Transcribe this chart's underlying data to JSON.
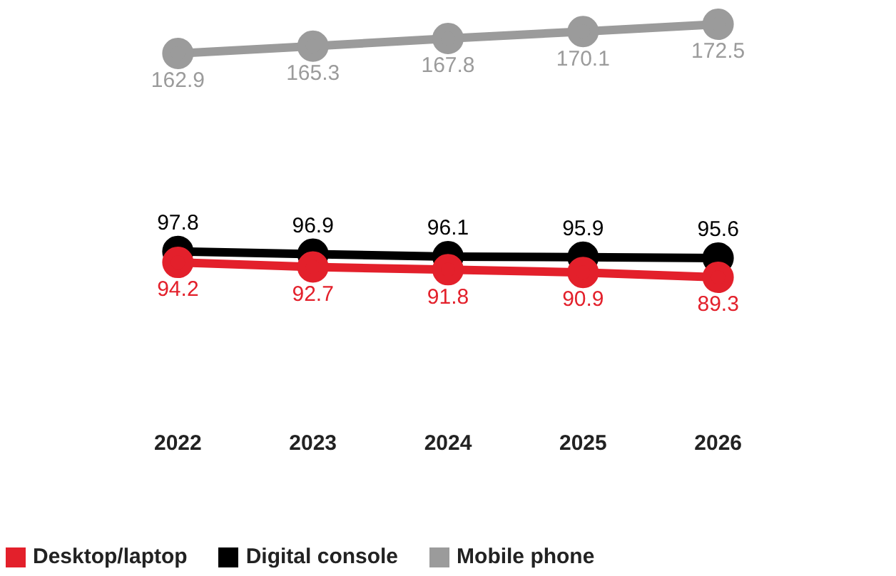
{
  "chart_data": {
    "type": "line",
    "categories": [
      "2022",
      "2023",
      "2024",
      "2025",
      "2026"
    ],
    "series": [
      {
        "name": "Desktop/laptop",
        "color": "#e3202b",
        "values": [
          94.2,
          92.7,
          91.8,
          90.9,
          89.3
        ]
      },
      {
        "name": "Digital console",
        "color": "#000000",
        "values": [
          97.8,
          96.9,
          96.1,
          95.9,
          95.6
        ]
      },
      {
        "name": "Mobile phone",
        "color": "#9b9b9b",
        "values": [
          162.9,
          165.3,
          167.8,
          170.1,
          172.5
        ]
      }
    ],
    "tick_labels": "x",
    "data_labels": true,
    "marker": "circle",
    "line_style": "solid",
    "grid": false,
    "legend": "bottom left"
  }
}
